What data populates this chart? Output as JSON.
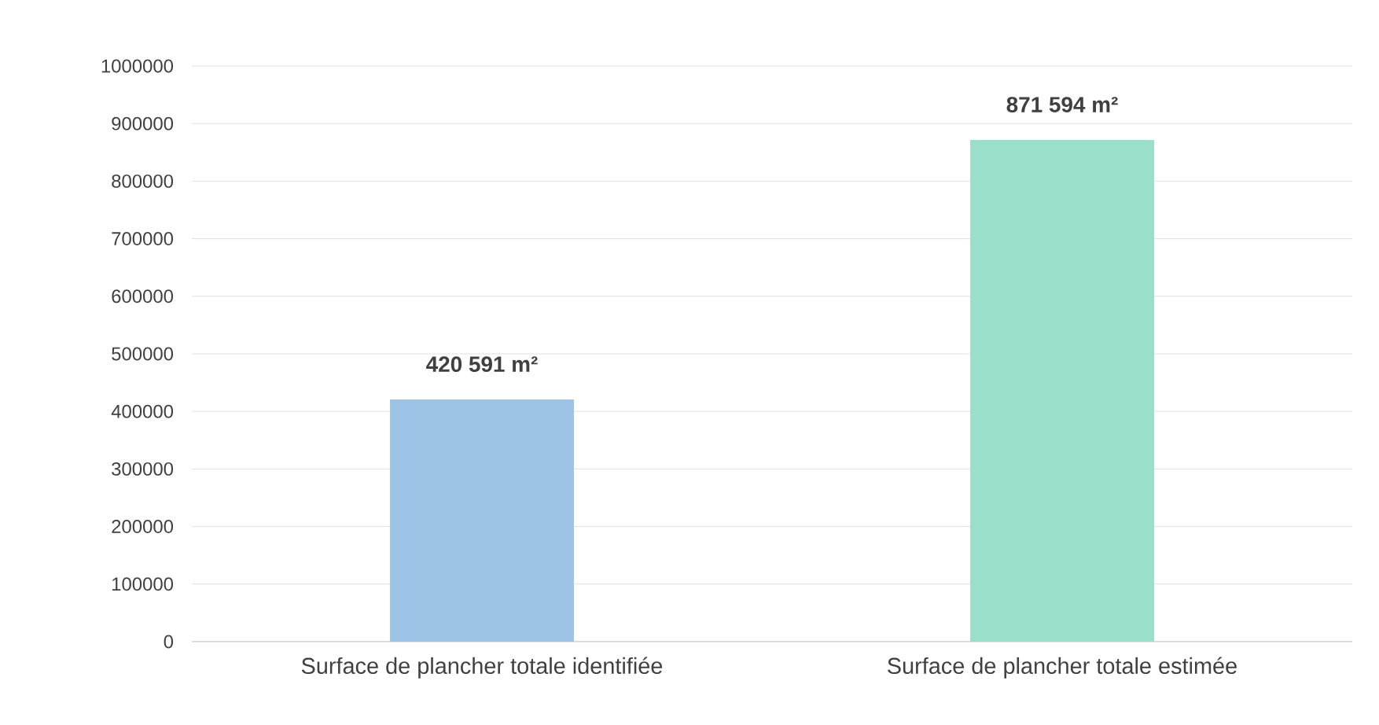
{
  "chart_data": {
    "type": "bar",
    "categories": [
      "Surface de plancher totale identifiée",
      "Surface de plancher totale estimée"
    ],
    "values": [
      420591,
      871594
    ],
    "colors": [
      "#9dc3e6",
      "#99dfcc"
    ],
    "value_labels": [
      "420 591 m²",
      "871 594 m²"
    ],
    "ylim": [
      0,
      1000000
    ],
    "yticks": [
      0,
      100000,
      200000,
      300000,
      400000,
      500000,
      600000,
      700000,
      800000,
      900000,
      1000000
    ],
    "grid": "y"
  }
}
